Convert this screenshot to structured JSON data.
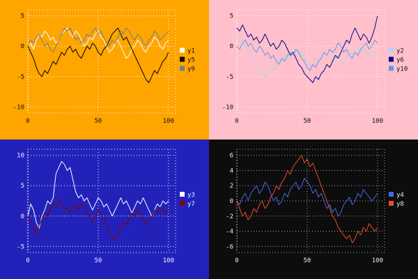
{
  "page": {
    "background": "#000000"
  },
  "chart_data": [
    {
      "type": "line",
      "title": "",
      "panel": "top-left",
      "background": "#ffa500",
      "text_color": "#111111",
      "grid_color": "#ffffff",
      "legend_position": "right",
      "xlim": [
        0,
        105
      ],
      "ylim": [
        -11,
        6
      ],
      "x_ticks": [
        0,
        50,
        100
      ],
      "y_ticks": [
        5,
        0,
        -5,
        -10
      ],
      "x_start": 0,
      "x_step": 2,
      "series": [
        {
          "name": "y1",
          "color": "#ffffff",
          "values": [
            0,
            0.5,
            -0.5,
            1,
            2,
            1.5,
            2.5,
            2,
            1,
            1.5,
            0.5,
            1,
            2,
            2.5,
            3,
            2,
            1.5,
            2.5,
            2,
            1,
            0,
            0.5,
            1.5,
            1,
            2,
            2.5,
            1.5,
            1,
            0,
            -1,
            -0.5,
            0.5,
            1,
            0,
            -1,
            -2,
            -1.5,
            -0.5,
            0,
            1,
            0.5,
            -0.5,
            -1,
            0,
            0.5,
            1.5,
            1,
            0,
            -0.5,
            0.5,
            1
          ]
        },
        {
          "name": "y5",
          "color": "#000000",
          "values": [
            0,
            -1,
            -2,
            -3.5,
            -4.5,
            -5,
            -4,
            -4.5,
            -3.5,
            -2.5,
            -3,
            -2,
            -1,
            -1.5,
            -0.5,
            0,
            -1,
            -0.5,
            -1.5,
            -2,
            -1,
            0,
            -0.5,
            0.5,
            0,
            -1,
            -1.5,
            -0.5,
            0,
            1,
            2,
            2.5,
            3,
            2,
            1,
            1.5,
            0.5,
            -0.5,
            -1.5,
            -2.5,
            -3.5,
            -4.5,
            -5.5,
            -6,
            -5,
            -4,
            -4.5,
            -3.5,
            -2.5,
            -2,
            -1
          ]
        },
        {
          "name": "y9",
          "color": "#708090",
          "values": [
            0,
            1,
            0.5,
            1.5,
            2,
            1,
            0,
            0.5,
            -0.5,
            -1,
            0,
            1,
            2,
            3,
            2.5,
            3,
            2,
            1,
            1.5,
            0.5,
            1,
            2,
            1.5,
            2.5,
            3,
            2,
            2.5,
            1.5,
            0.5,
            0,
            1,
            0.5,
            1.5,
            2.5,
            2,
            3,
            2.5,
            1.5,
            1,
            2,
            1.5,
            0.5,
            0,
            1,
            1.5,
            2.5,
            2,
            1,
            1.5,
            2,
            2.5
          ]
        }
      ]
    },
    {
      "type": "line",
      "title": "",
      "panel": "top-right",
      "background": "#ffc0cb",
      "text_color": "#111111",
      "grid_color": "#ffffff",
      "legend_position": "right",
      "xlim": [
        0,
        105
      ],
      "ylim": [
        -11,
        6
      ],
      "x_ticks": [
        0,
        50,
        100
      ],
      "y_ticks": [
        5,
        0,
        -5,
        -10
      ],
      "x_start": 0,
      "x_step": 2,
      "series": [
        {
          "name": "y2",
          "color": "#add8e6",
          "values": [
            2,
            1.5,
            1,
            0,
            -0.5,
            -1.5,
            -2.5,
            -3,
            -4,
            -4.5,
            -5,
            -4.5,
            -3.5,
            -4,
            -3,
            -2,
            -2.5,
            -1.5,
            -1,
            -2,
            -1,
            -0.5,
            -1.5,
            -1,
            -2,
            -2.5,
            -3.5,
            -3,
            -2,
            -2.5,
            -1.5,
            -1,
            -1.5,
            -0.5,
            -1,
            -2,
            -1.5,
            -2.5,
            -3,
            -2,
            -1,
            -1.5,
            -0.5,
            0,
            -1,
            -0.5,
            -1.5,
            -1,
            -2,
            -1.5,
            -1
          ]
        },
        {
          "name": "y6",
          "color": "#00008b",
          "values": [
            3,
            2.5,
            3.5,
            2.5,
            1.5,
            2,
            1,
            1.5,
            0.5,
            1,
            2,
            1,
            0,
            0.5,
            -0.5,
            0,
            1,
            0.5,
            -0.5,
            -1.5,
            -1,
            -2,
            -3,
            -3.5,
            -4.5,
            -5,
            -5.5,
            -6,
            -5,
            -5.5,
            -4.5,
            -4,
            -3,
            -3.5,
            -2.5,
            -1.5,
            -2,
            -1,
            0,
            1,
            0.5,
            2,
            3,
            2,
            1,
            2,
            1.5,
            0.5,
            1.5,
            3,
            5
          ]
        },
        {
          "name": "y10",
          "color": "#6495ed",
          "values": [
            0,
            -0.5,
            0.5,
            1,
            0,
            0.5,
            -0.5,
            -1,
            0,
            -0.5,
            -1.5,
            -1,
            -2,
            -1.5,
            -2.5,
            -3,
            -2,
            -2.5,
            -1.5,
            -1,
            -1.5,
            -0.5,
            -1,
            -2,
            -2.5,
            -3.5,
            -4,
            -3,
            -3.5,
            -2.5,
            -2,
            -1,
            -1.5,
            -0.5,
            -1,
            -0.5,
            0.5,
            0,
            -1,
            -0.5,
            -1.5,
            -2,
            -1,
            -1.5,
            -0.5,
            0,
            0.5,
            -0.5,
            0,
            1,
            0.5
          ]
        }
      ]
    },
    {
      "type": "line",
      "title": "",
      "panel": "bottom-left",
      "background": "#2222bb",
      "text_color": "#eeeeff",
      "grid_color": "#ffffff",
      "legend_position": "right",
      "xlim": [
        0,
        105
      ],
      "ylim": [
        -6,
        11
      ],
      "x_ticks": [
        0,
        50,
        100
      ],
      "y_ticks": [
        10,
        5,
        0,
        -5
      ],
      "x_start": 0,
      "x_step": 2,
      "series": [
        {
          "name": "y3",
          "color": "#ffffff",
          "values": [
            0,
            2,
            1,
            -1,
            -2,
            0,
            1,
            2.5,
            2,
            3,
            7,
            8,
            9,
            8.5,
            7.5,
            8,
            6,
            4,
            3,
            3.5,
            2.5,
            3,
            2,
            1,
            2,
            3,
            2.5,
            1.5,
            2,
            1,
            0,
            1,
            2,
            3,
            2,
            2.5,
            1.5,
            0.5,
            1.5,
            2.5,
            2,
            3,
            2,
            1,
            0,
            1,
            2,
            1.5,
            2.5,
            2,
            2.5
          ]
        },
        {
          "name": "y7",
          "color": "#8b0000",
          "values": [
            0,
            -1,
            -2,
            -3,
            -1.5,
            -0.5,
            0.5,
            0,
            1,
            2,
            1.5,
            2.5,
            2,
            1,
            1.5,
            0.5,
            1.5,
            2,
            1,
            2,
            1.5,
            0.5,
            0,
            -1,
            0,
            1,
            0.5,
            -0.5,
            -1.5,
            -2.5,
            -3.5,
            -4,
            -3,
            -2,
            -1,
            -1.5,
            -0.5,
            0.5,
            0,
            1,
            0.5,
            -0.5,
            -1.5,
            -1,
            0,
            1,
            0.5,
            1.5,
            1,
            0.5,
            1
          ]
        }
      ]
    },
    {
      "type": "line",
      "title": "",
      "panel": "bottom-right",
      "background": "#0d0d0d",
      "text_color": "#eeeeee",
      "grid_color": "#aaaaaa",
      "legend_position": "right",
      "xlim": [
        0,
        105
      ],
      "ylim": [
        -6.8,
        6.8
      ],
      "x_ticks": [
        0,
        50,
        100
      ],
      "y_ticks": [
        6,
        4,
        2,
        0,
        -2,
        -4,
        -6
      ],
      "x_start": 0,
      "x_step": 2,
      "series": [
        {
          "name": "y4",
          "color": "#4169e1",
          "values": [
            0,
            -0.5,
            0.5,
            1,
            0,
            1,
            1.5,
            2,
            1,
            1.5,
            2.5,
            2,
            1,
            0,
            0.5,
            -0.5,
            0,
            1,
            0.5,
            1.5,
            2,
            2.5,
            1.5,
            2,
            3,
            2.5,
            2,
            1,
            1.5,
            0.5,
            1,
            0,
            -1,
            -0.5,
            -1.5,
            -1,
            -2,
            -1.5,
            -0.5,
            0,
            0.5,
            -0.5,
            0,
            1,
            0.5,
            1.5,
            1,
            0.5,
            0,
            0.5,
            1
          ]
        },
        {
          "name": "y8",
          "color": "#ee4b2b",
          "values": [
            0,
            -1,
            -2,
            -1.5,
            -2.5,
            -2,
            -1,
            -1.5,
            -0.5,
            0,
            -1,
            -0.5,
            0.5,
            1,
            2,
            1.5,
            2.5,
            3,
            4,
            3.5,
            4.5,
            5,
            5.5,
            6,
            5,
            5.5,
            4.5,
            5,
            4,
            3,
            2,
            1,
            0,
            -1,
            -2,
            -2.5,
            -3.5,
            -4,
            -4.5,
            -5,
            -4.5,
            -5.5,
            -5,
            -4,
            -4.5,
            -3.5,
            -4,
            -3,
            -3.5,
            -4,
            -3.5
          ]
        }
      ]
    }
  ]
}
